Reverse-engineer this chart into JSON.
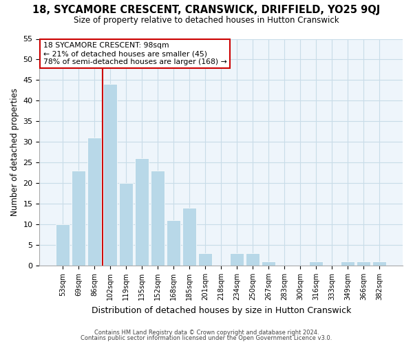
{
  "title": "18, SYCAMORE CRESCENT, CRANSWICK, DRIFFIELD, YO25 9QJ",
  "subtitle": "Size of property relative to detached houses in Hutton Cranswick",
  "xlabel": "Distribution of detached houses by size in Hutton Cranswick",
  "ylabel": "Number of detached properties",
  "bar_labels": [
    "53sqm",
    "69sqm",
    "86sqm",
    "102sqm",
    "119sqm",
    "135sqm",
    "152sqm",
    "168sqm",
    "185sqm",
    "201sqm",
    "218sqm",
    "234sqm",
    "250sqm",
    "267sqm",
    "283sqm",
    "300sqm",
    "316sqm",
    "333sqm",
    "349sqm",
    "366sqm",
    "382sqm"
  ],
  "bar_values": [
    10,
    23,
    31,
    44,
    20,
    26,
    23,
    11,
    14,
    3,
    0,
    3,
    3,
    1,
    0,
    0,
    1,
    0,
    1,
    1,
    1
  ],
  "bar_color": "#b8d8e8",
  "bar_edge_color": "#b8d8e8",
  "grid_color": "#c8dce8",
  "background_color": "#ffffff",
  "plot_bg_color": "#eef5fb",
  "vline_color": "#cc0000",
  "annotation_title": "18 SYCAMORE CRESCENT: 98sqm",
  "annotation_line1": "← 21% of detached houses are smaller (45)",
  "annotation_line2": "78% of semi-detached houses are larger (168) →",
  "annotation_box_color": "#ffffff",
  "annotation_box_edge": "#cc0000",
  "ylim": [
    0,
    55
  ],
  "yticks": [
    0,
    5,
    10,
    15,
    20,
    25,
    30,
    35,
    40,
    45,
    50,
    55
  ],
  "footer1": "Contains HM Land Registry data © Crown copyright and database right 2024.",
  "footer2": "Contains public sector information licensed under the Open Government Licence v3.0."
}
